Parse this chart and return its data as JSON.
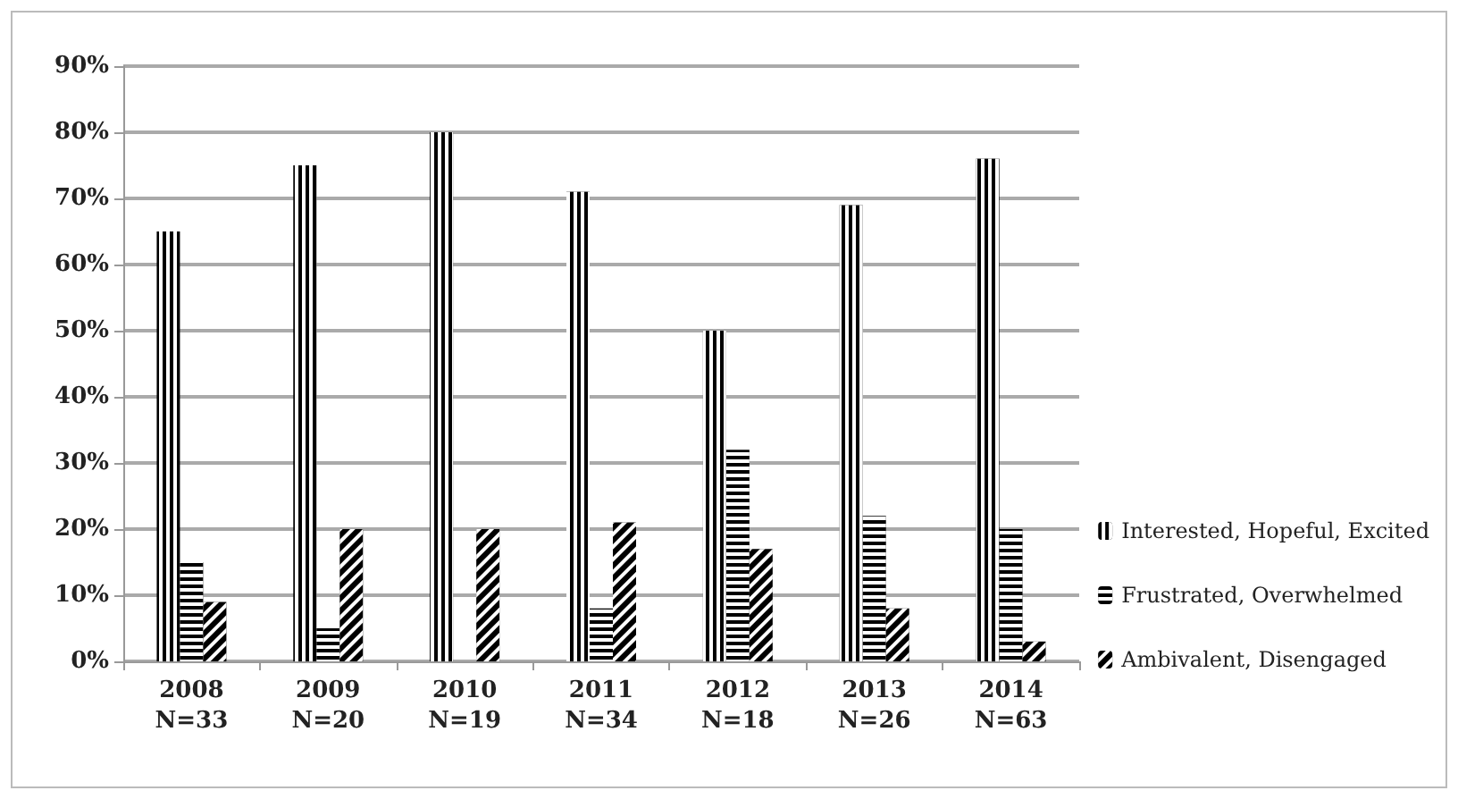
{
  "chart_data": {
    "type": "bar",
    "categories": [
      "2008\nN=33",
      "2009\nN=20",
      "2010\nN=19",
      "2011\nN=34",
      "2012\nN=18",
      "2013\nN=26",
      "2014\nN=63"
    ],
    "series": [
      {
        "name": "Interested, Hopeful, Excited",
        "color": "#000000",
        "values": [
          65,
          75,
          80,
          71,
          50,
          69,
          76
        ]
      },
      {
        "name": "Frustrated, Overwhelmed",
        "color": "#000000",
        "values": [
          15,
          5,
          0,
          8,
          32,
          22,
          20
        ]
      },
      {
        "name": "Ambivalent, Disengaged",
        "color": "#000000",
        "values": [
          9,
          20,
          20,
          21,
          17,
          8,
          3
        ]
      }
    ],
    "ylim": [
      0,
      90
    ],
    "yticks": [
      {
        "value": 0,
        "label": "0%"
      },
      {
        "value": 10,
        "label": "10%"
      },
      {
        "value": 20,
        "label": "20%"
      },
      {
        "value": 30,
        "label": "30%"
      },
      {
        "value": 40,
        "label": "40%"
      },
      {
        "value": 50,
        "label": "50%"
      },
      {
        "value": 60,
        "label": "60%"
      },
      {
        "value": 70,
        "label": "70%"
      },
      {
        "value": 80,
        "label": "80%"
      },
      {
        "value": 90,
        "label": "90%"
      }
    ],
    "grid": "y",
    "legend": "right"
  }
}
